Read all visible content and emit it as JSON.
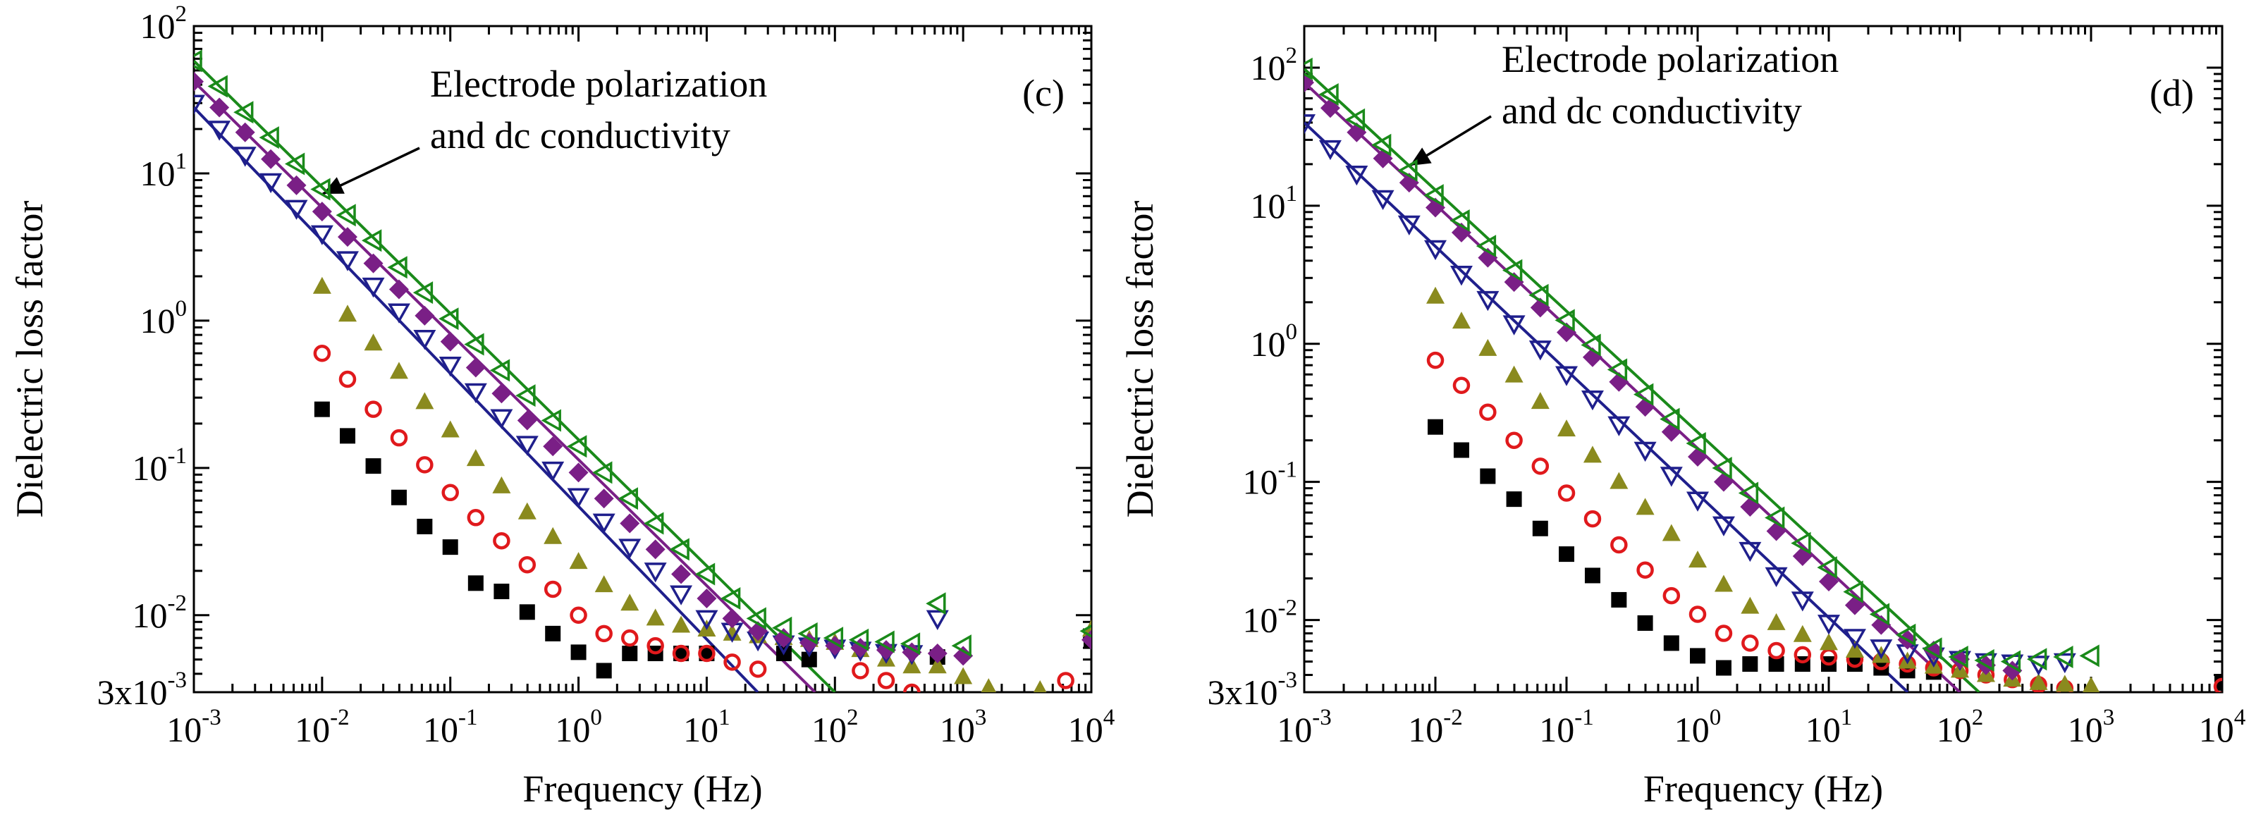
{
  "colors": {
    "black": "#000000",
    "red": "#e0191c",
    "olive": "#8a8a1e",
    "navy": "#1f1f8c",
    "purple": "#7a1f86",
    "green": "#1a8a1a"
  },
  "chart_data": [
    {
      "type": "scatter",
      "panel_label": "(c)",
      "xlabel": "Frequency (Hz)",
      "ylabel": "Dielectric loss factor",
      "xscale": "log",
      "yscale": "log",
      "xlim": [
        0.001,
        10000
      ],
      "ylim": [
        0.003,
        100
      ],
      "x_ticks": [
        {
          "base": "10",
          "exp": "-3"
        },
        {
          "base": "10",
          "exp": "-2"
        },
        {
          "base": "10",
          "exp": "-1"
        },
        {
          "base": "10",
          "exp": "0"
        },
        {
          "base": "10",
          "exp": "1"
        },
        {
          "base": "10",
          "exp": "2"
        },
        {
          "base": "10",
          "exp": "3"
        },
        {
          "base": "10",
          "exp": "4"
        }
      ],
      "y_ticks": [
        {
          "base": "3x10",
          "exp": "-3"
        },
        {
          "base": "10",
          "exp": "-2"
        },
        {
          "base": "10",
          "exp": "-1"
        },
        {
          "base": "10",
          "exp": "0"
        },
        {
          "base": "10",
          "exp": "1"
        },
        {
          "base": "10",
          "exp": "2"
        }
      ],
      "annotation": {
        "line1": "Electrode polarization",
        "line2": "and dc conductivity"
      },
      "series": [
        {
          "name": "black-squares",
          "marker": "square-filled",
          "color_key": "black",
          "x": [
            0.01,
            0.0158,
            0.0251,
            0.0398,
            0.0631,
            0.1,
            0.158,
            0.251,
            0.398,
            0.631,
            1,
            1.58,
            2.51,
            3.98,
            6.31,
            10
          ],
          "y": [
            0.25,
            0.165,
            0.103,
            0.063,
            0.04,
            0.029,
            0.0165,
            0.0145,
            0.0105,
            0.0075,
            0.0056,
            0.0042,
            0.0055,
            0.0055,
            0.0055,
            0.0055
          ]
        },
        {
          "name": "black-squares-hf",
          "marker": "square-filled",
          "color_key": "black",
          "x": [
            40,
            63,
            631,
            10000
          ],
          "y": [
            0.0055,
            0.005,
            0.0052,
            0.0068
          ]
        },
        {
          "name": "red-circles",
          "marker": "circle-open",
          "color_key": "red",
          "x": [
            0.01,
            0.0158,
            0.0251,
            0.0398,
            0.0631,
            0.1,
            0.158,
            0.251,
            0.398,
            0.631,
            1,
            1.58,
            2.51,
            3.98,
            6.31,
            10,
            15.8,
            25.1
          ],
          "y": [
            0.6,
            0.4,
            0.25,
            0.16,
            0.105,
            0.068,
            0.046,
            0.032,
            0.022,
            0.015,
            0.01,
            0.0075,
            0.007,
            0.0062,
            0.0055,
            0.0055,
            0.0048,
            0.0043
          ]
        },
        {
          "name": "red-circles-hf",
          "marker": "circle-open",
          "color_key": "red",
          "x": [
            158,
            251,
            398,
            6310
          ],
          "y": [
            0.0042,
            0.0036,
            0.003,
            0.0036
          ]
        },
        {
          "name": "olive-triangles",
          "marker": "triangle-up-filled",
          "color_key": "olive",
          "x": [
            0.01,
            0.0158,
            0.0251,
            0.0398,
            0.0631,
            0.1,
            0.158,
            0.251,
            0.398,
            0.631,
            1,
            1.58,
            2.51,
            3.98,
            6.31,
            10,
            15.8,
            25.1,
            39.8,
            63.1,
            100,
            158,
            251,
            398,
            631,
            1000,
            1580,
            3980,
            10000
          ],
          "y": [
            1.7,
            1.1,
            0.7,
            0.45,
            0.28,
            0.18,
            0.115,
            0.075,
            0.05,
            0.034,
            0.023,
            0.016,
            0.012,
            0.0095,
            0.0085,
            0.008,
            0.0075,
            0.0072,
            0.007,
            0.0068,
            0.0065,
            0.0058,
            0.005,
            0.0045,
            0.0045,
            0.0038,
            0.0032,
            0.0031,
            0.008
          ]
        },
        {
          "name": "navy-triangles",
          "marker": "triangle-down-open",
          "color_key": "navy",
          "x": [
            0.001,
            0.00158,
            0.00251,
            0.00398,
            0.00631,
            0.01,
            0.0158,
            0.0251,
            0.0398,
            0.0631,
            0.1,
            0.158,
            0.251,
            0.398,
            0.631,
            1,
            1.58,
            2.51,
            3.98,
            6.31,
            10,
            15.8,
            25.1,
            39.8,
            63.1,
            100,
            158,
            251,
            398,
            631
          ],
          "y": [
            30,
            20,
            13.3,
            8.8,
            5.8,
            3.9,
            2.6,
            1.72,
            1.15,
            0.76,
            0.5,
            0.33,
            0.22,
            0.145,
            0.097,
            0.064,
            0.043,
            0.029,
            0.02,
            0.014,
            0.0095,
            0.0078,
            0.0068,
            0.0064,
            0.0062,
            0.006,
            0.0058,
            0.0056,
            0.0055,
            0.0095
          ]
        },
        {
          "name": "purple-diamonds",
          "marker": "diamond-filled",
          "color_key": "purple",
          "x": [
            0.001,
            0.00158,
            0.00251,
            0.00398,
            0.00631,
            0.01,
            0.0158,
            0.0251,
            0.0398,
            0.0631,
            0.1,
            0.158,
            0.251,
            0.398,
            0.631,
            1,
            1.58,
            2.51,
            3.98,
            6.31,
            10,
            15.8,
            25.1,
            39.8,
            63.1,
            100,
            158,
            251,
            398,
            631,
            1000,
            10000
          ],
          "y": [
            42,
            28,
            19,
            12.5,
            8.3,
            5.5,
            3.7,
            2.45,
            1.63,
            1.08,
            0.72,
            0.48,
            0.32,
            0.21,
            0.14,
            0.093,
            0.062,
            0.042,
            0.028,
            0.019,
            0.013,
            0.0095,
            0.0078,
            0.007,
            0.0065,
            0.0062,
            0.006,
            0.0058,
            0.0056,
            0.0055,
            0.0053,
            0.0068
          ]
        },
        {
          "name": "green-triangles",
          "marker": "triangle-left-open",
          "color_key": "green",
          "x": [
            0.001,
            0.00158,
            0.00251,
            0.00398,
            0.00631,
            0.01,
            0.0158,
            0.0251,
            0.0398,
            0.0631,
            0.1,
            0.158,
            0.251,
            0.398,
            0.631,
            1,
            1.58,
            2.51,
            3.98,
            6.31,
            10,
            15.8,
            25.1,
            39.8,
            63.1,
            100,
            158,
            251,
            398,
            631,
            1000,
            10000
          ],
          "y": [
            58,
            39,
            26,
            17.5,
            11.6,
            7.8,
            5.2,
            3.5,
            2.3,
            1.55,
            1.03,
            0.69,
            0.46,
            0.31,
            0.21,
            0.14,
            0.093,
            0.062,
            0.042,
            0.028,
            0.019,
            0.013,
            0.0095,
            0.0082,
            0.0075,
            0.007,
            0.0068,
            0.0066,
            0.0064,
            0.012,
            0.0062,
            0.0078
          ]
        }
      ],
      "fit_lines": [
        {
          "name": "navy-fit",
          "color_key": "navy",
          "x": [
            0.001,
            25
          ],
          "y": [
            28,
            0.003
          ]
        },
        {
          "name": "purple-fit",
          "color_key": "purple",
          "x": [
            0.001,
            70
          ],
          "y": [
            42,
            0.003
          ]
        },
        {
          "name": "green-fit",
          "color_key": "green",
          "x": [
            0.001,
            100
          ],
          "y": [
            58,
            0.003
          ]
        }
      ]
    },
    {
      "type": "scatter",
      "panel_label": "(d)",
      "xlabel": "Frequency (Hz)",
      "ylabel": "Dielectric loss factor",
      "xscale": "log",
      "yscale": "log",
      "xlim": [
        0.001,
        10000
      ],
      "ylim": [
        0.003,
        200
      ],
      "x_ticks": [
        {
          "base": "10",
          "exp": "-3"
        },
        {
          "base": "10",
          "exp": "-2"
        },
        {
          "base": "10",
          "exp": "-1"
        },
        {
          "base": "10",
          "exp": "0"
        },
        {
          "base": "10",
          "exp": "1"
        },
        {
          "base": "10",
          "exp": "2"
        },
        {
          "base": "10",
          "exp": "3"
        },
        {
          "base": "10",
          "exp": "4"
        }
      ],
      "y_ticks": [
        {
          "base": "3x10",
          "exp": "-3"
        },
        {
          "base": "10",
          "exp": "-2"
        },
        {
          "base": "10",
          "exp": "-1"
        },
        {
          "base": "10",
          "exp": "0"
        },
        {
          "base": "10",
          "exp": "1"
        },
        {
          "base": "10",
          "exp": "2"
        }
      ],
      "annotation": {
        "line1": "Electrode polarization",
        "line2": "and dc conductivity"
      },
      "series": [
        {
          "name": "black-squares",
          "marker": "square-filled",
          "color_key": "black",
          "x": [
            0.01,
            0.0158,
            0.0251,
            0.0398,
            0.0631,
            0.1,
            0.158,
            0.251,
            0.398,
            0.631,
            1,
            1.58,
            2.51,
            3.98,
            6.31,
            10,
            15.8,
            25.1,
            39.8,
            63.1
          ],
          "y": [
            0.25,
            0.17,
            0.11,
            0.075,
            0.046,
            0.03,
            0.021,
            0.014,
            0.0095,
            0.0068,
            0.0055,
            0.0045,
            0.0048,
            0.0048,
            0.0048,
            0.0048,
            0.0048,
            0.0045,
            0.0043,
            0.0042
          ]
        },
        {
          "name": "black-squares-hf",
          "marker": "square-filled",
          "color_key": "black",
          "x": [
            10000
          ],
          "y": [
            0.0035
          ]
        },
        {
          "name": "red-circles",
          "marker": "circle-open",
          "color_key": "red",
          "x": [
            0.01,
            0.0158,
            0.0251,
            0.0398,
            0.0631,
            0.1,
            0.158,
            0.251,
            0.398,
            0.631,
            1,
            1.58,
            2.51,
            3.98,
            6.31,
            10,
            15.8,
            25.1,
            39.8,
            63.1,
            100,
            158,
            251,
            398,
            631
          ],
          "y": [
            0.76,
            0.5,
            0.32,
            0.2,
            0.13,
            0.083,
            0.054,
            0.035,
            0.023,
            0.015,
            0.011,
            0.008,
            0.0068,
            0.006,
            0.0056,
            0.0054,
            0.0052,
            0.005,
            0.0048,
            0.0045,
            0.0043,
            0.004,
            0.0037,
            0.0034,
            0.0032
          ]
        },
        {
          "name": "red-circles-hf",
          "marker": "circle-open",
          "color_key": "red",
          "x": [
            10000
          ],
          "y": [
            0.0033
          ]
        },
        {
          "name": "olive-triangles",
          "marker": "triangle-up-filled",
          "color_key": "olive",
          "x": [
            0.01,
            0.0158,
            0.0251,
            0.0398,
            0.0631,
            0.1,
            0.158,
            0.251,
            0.398,
            0.631,
            1,
            1.58,
            2.51,
            3.98,
            6.31,
            10,
            15.8,
            25.1,
            39.8,
            63.1,
            100,
            158,
            251,
            398,
            631,
            1000
          ],
          "y": [
            2.2,
            1.45,
            0.92,
            0.59,
            0.38,
            0.24,
            0.155,
            0.1,
            0.065,
            0.042,
            0.027,
            0.018,
            0.0125,
            0.0095,
            0.0078,
            0.0068,
            0.006,
            0.0055,
            0.005,
            0.0046,
            0.0043,
            0.004,
            0.0037,
            0.0035,
            0.0034,
            0.0033
          ]
        },
        {
          "name": "navy-triangles",
          "marker": "triangle-down-open",
          "color_key": "navy",
          "x": [
            0.001,
            0.00158,
            0.00251,
            0.00398,
            0.00631,
            0.01,
            0.0158,
            0.0251,
            0.0398,
            0.0631,
            0.1,
            0.158,
            0.251,
            0.398,
            0.631,
            1,
            1.58,
            2.51,
            3.98,
            6.31,
            10,
            15.8,
            25.1,
            39.8,
            63.1,
            100,
            158,
            251,
            398,
            631
          ],
          "y": [
            40,
            26,
            17,
            11.3,
            7.4,
            4.9,
            3.2,
            2.1,
            1.4,
            0.92,
            0.6,
            0.4,
            0.26,
            0.17,
            0.112,
            0.074,
            0.049,
            0.032,
            0.021,
            0.014,
            0.0095,
            0.0075,
            0.0063,
            0.0058,
            0.0055,
            0.0052,
            0.005,
            0.0049,
            0.0048,
            0.005
          ]
        },
        {
          "name": "purple-diamonds",
          "marker": "diamond-filled",
          "color_key": "purple",
          "x": [
            0.001,
            0.00158,
            0.00251,
            0.00398,
            0.00631,
            0.01,
            0.0158,
            0.0251,
            0.0398,
            0.0631,
            0.1,
            0.158,
            0.251,
            0.398,
            0.631,
            1,
            1.58,
            2.51,
            3.98,
            6.31,
            10,
            15.8,
            25.1,
            39.8,
            63.1,
            100,
            158,
            251
          ],
          "y": [
            78,
            51,
            34,
            22,
            14.7,
            9.7,
            6.4,
            4.2,
            2.8,
            1.83,
            1.21,
            0.8,
            0.53,
            0.35,
            0.23,
            0.152,
            0.1,
            0.066,
            0.044,
            0.029,
            0.019,
            0.0128,
            0.0092,
            0.0072,
            0.006,
            0.0052,
            0.0047,
            0.0043
          ]
        },
        {
          "name": "green-triangles",
          "marker": "triangle-left-open",
          "color_key": "green",
          "x": [
            0.001,
            0.00158,
            0.00251,
            0.00398,
            0.00631,
            0.01,
            0.0158,
            0.0251,
            0.0398,
            0.0631,
            0.1,
            0.158,
            0.251,
            0.398,
            0.631,
            1,
            1.58,
            2.51,
            3.98,
            6.31,
            10,
            15.8,
            25.1,
            39.8,
            63.1,
            100,
            158,
            251,
            398,
            631,
            1000
          ],
          "y": [
            98,
            64,
            42,
            27.5,
            18,
            11.9,
            7.8,
            5.1,
            3.4,
            2.25,
            1.48,
            0.98,
            0.65,
            0.43,
            0.285,
            0.19,
            0.126,
            0.083,
            0.055,
            0.036,
            0.024,
            0.016,
            0.011,
            0.0078,
            0.0062,
            0.0054,
            0.0051,
            0.005,
            0.0052,
            0.0054,
            0.0055
          ]
        }
      ],
      "fit_lines": [
        {
          "name": "navy-fit",
          "color_key": "navy",
          "x": [
            0.001,
            40
          ],
          "y": [
            40,
            0.003
          ]
        },
        {
          "name": "purple-fit",
          "color_key": "purple",
          "x": [
            0.001,
            100
          ],
          "y": [
            78,
            0.003
          ]
        },
        {
          "name": "green-fit",
          "color_key": "green",
          "x": [
            0.001,
            140
          ],
          "y": [
            98,
            0.003
          ]
        }
      ]
    }
  ]
}
